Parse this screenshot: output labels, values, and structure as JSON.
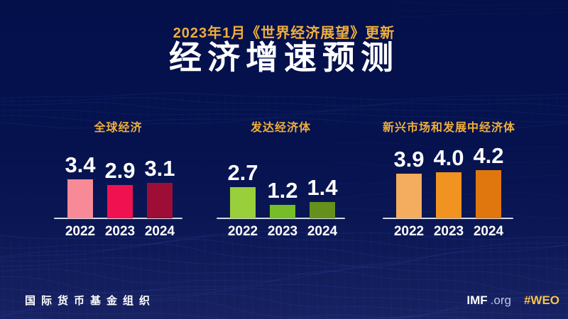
{
  "header": {
    "subtitle": "2023年1月《世界经济展望》更新",
    "title": "经济增速预测"
  },
  "chart_data": {
    "type": "bar",
    "title": "经济增速预测",
    "subtitle": "2023年1月《世界经济展望》更新",
    "unit": "percent_growth",
    "categories": [
      "2022",
      "2023",
      "2024"
    ],
    "groups": [
      {
        "label": "全球经济",
        "values": [
          3.4,
          2.9,
          3.1
        ],
        "colors": [
          "#F78A96",
          "#F01250",
          "#9E0D36"
        ]
      },
      {
        "label": "发达经济体",
        "values": [
          2.7,
          1.2,
          1.4
        ],
        "colors": [
          "#98CF3B",
          "#75BE27",
          "#66901C"
        ]
      },
      {
        "label": "新兴市场和发展中经济体",
        "values": [
          3.9,
          4.0,
          4.2
        ],
        "colors": [
          "#F4AC5E",
          "#F09320",
          "#E0760E"
        ]
      }
    ],
    "ylim": [
      0,
      4.5
    ],
    "value_labels": true,
    "gridlines": false,
    "axis_line_color": "#D3D9E8"
  },
  "footer": {
    "org_name": "国际货币基金组织",
    "site": "IMF",
    "site_suffix": ".org",
    "hashtag": "#WEO"
  },
  "colors": {
    "background_top": "#03104A",
    "background_bottom": "#182262",
    "mesh_line": "#4560C4",
    "accent_gold": "#EFAE3C",
    "hashtag_gold": "#F6C544",
    "text_white": "#FFFFFF"
  }
}
